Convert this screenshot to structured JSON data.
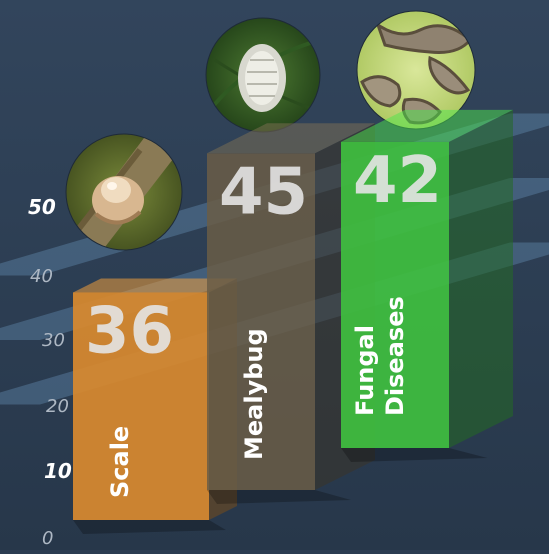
{
  "chart_data": {
    "type": "bar",
    "title": "",
    "xlabel": "",
    "ylabel": "",
    "ylim": [
      0,
      50
    ],
    "yticks": [
      0,
      10,
      20,
      30,
      40,
      50
    ],
    "categories": [
      "Scale",
      "Mealybug",
      "Fungal Diseases"
    ],
    "category_lines": [
      [
        "Scale"
      ],
      [
        "Mealybug"
      ],
      [
        "Fungal",
        "Diseases"
      ]
    ],
    "values": [
      36,
      45,
      42
    ],
    "value_labels": [
      "36",
      "45",
      "42"
    ],
    "grid": true,
    "colors": [
      "#d98a2f",
      "#6a5d46",
      "#3fbf3f"
    ],
    "background": "#2c3d52",
    "images": [
      "scale-insect-photo",
      "mealybug-photo",
      "fungal-leaf-spot-photo"
    ]
  }
}
